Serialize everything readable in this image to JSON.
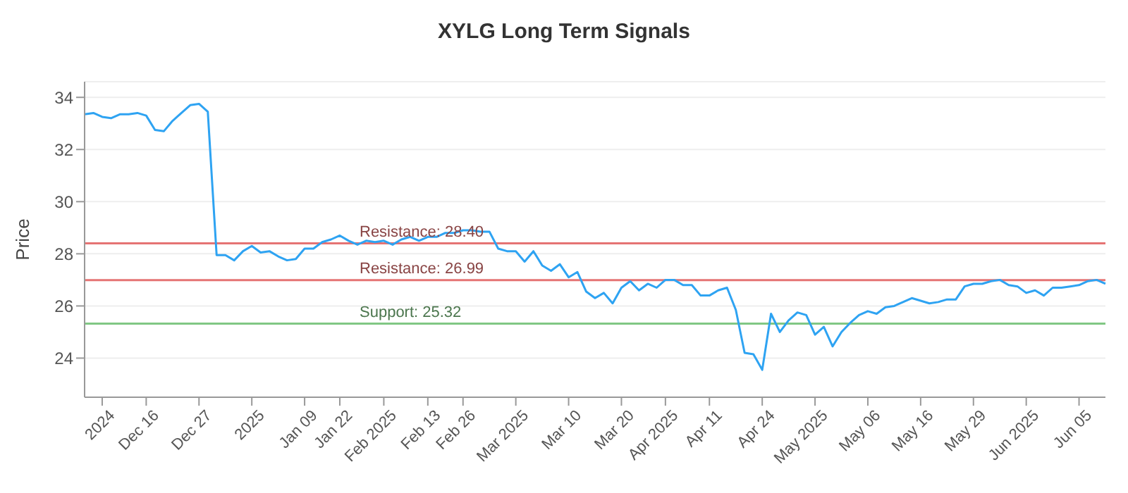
{
  "chart_data": {
    "type": "line",
    "title": "XYLG Long Term Signals",
    "ylabel": "Price",
    "categories": [
      null,
      null,
      "2024",
      null,
      null,
      null,
      null,
      "Dec 16",
      null,
      null,
      null,
      null,
      null,
      "Dec 27",
      null,
      null,
      null,
      null,
      null,
      "2025",
      null,
      null,
      null,
      null,
      null,
      "Jan 09",
      null,
      null,
      null,
      "Jan 22",
      null,
      null,
      null,
      null,
      "Feb 2025",
      null,
      null,
      null,
      null,
      "Feb 13",
      null,
      null,
      null,
      "Feb 26",
      null,
      null,
      null,
      null,
      null,
      "Mar 2025",
      null,
      null,
      null,
      null,
      null,
      "Mar 10",
      null,
      null,
      null,
      null,
      null,
      "Mar 20",
      null,
      null,
      null,
      null,
      "Apr 2025",
      null,
      null,
      null,
      null,
      "Apr 11",
      null,
      null,
      null,
      null,
      null,
      "Apr 24",
      null,
      null,
      null,
      null,
      null,
      "May 2025",
      null,
      null,
      null,
      null,
      null,
      "May 06",
      null,
      null,
      null,
      null,
      null,
      "May 16",
      null,
      null,
      null,
      null,
      null,
      "May 29",
      null,
      null,
      null,
      null,
      null,
      "Jun 2025",
      null,
      null,
      null,
      null,
      null,
      "Jun 05",
      null,
      null,
      null
    ],
    "ylim": [
      22.5,
      34.6
    ],
    "yticks": [
      24,
      26,
      28,
      30,
      32,
      34
    ],
    "grid": "y",
    "marker": "none",
    "line_style": "solid",
    "series": [
      {
        "color": "#2ea3f2",
        "values": [
          33.35,
          33.4,
          33.25,
          33.2,
          33.35,
          33.35,
          33.4,
          33.3,
          32.75,
          32.7,
          33.1,
          33.4,
          33.7,
          33.75,
          33.45,
          27.95,
          27.95,
          27.75,
          28.1,
          28.3,
          28.05,
          28.1,
          27.9,
          27.75,
          27.8,
          28.2,
          28.2,
          28.45,
          28.55,
          28.7,
          28.5,
          28.35,
          28.5,
          28.45,
          28.5,
          28.35,
          28.55,
          28.65,
          28.5,
          28.65,
          28.65,
          28.8,
          28.8,
          28.9,
          28.9,
          28.85,
          28.85,
          28.2,
          28.1,
          28.1,
          27.7,
          28.1,
          27.55,
          27.35,
          27.6,
          27.1,
          27.3,
          26.55,
          26.3,
          26.5,
          26.1,
          26.7,
          26.95,
          26.6,
          26.85,
          26.7,
          27.0,
          27.0,
          26.8,
          26.8,
          26.4,
          26.4,
          26.6,
          26.7,
          25.85,
          24.2,
          24.15,
          23.55,
          25.7,
          25.0,
          25.45,
          25.75,
          25.65,
          24.9,
          25.2,
          24.45,
          25.0,
          25.35,
          25.65,
          25.8,
          25.7,
          25.95,
          26.0,
          26.15,
          26.3,
          26.2,
          26.1,
          26.15,
          26.25,
          26.25,
          26.75,
          26.85,
          26.85,
          26.95,
          27.0,
          26.8,
          26.75,
          26.5,
          26.6,
          26.4,
          26.7,
          26.7,
          26.75,
          26.8,
          26.95,
          27.0,
          26.85
        ]
      }
    ],
    "ref_lines": [
      {
        "axis": "y",
        "value": 28.4,
        "label": "Resistance: 28.40",
        "color": "#e57373"
      },
      {
        "axis": "y",
        "value": 26.99,
        "label": "Resistance: 26.99",
        "color": "#e57373"
      },
      {
        "axis": "y",
        "value": 25.32,
        "label": "Support: 25.32",
        "color": "#81c784"
      }
    ]
  }
}
